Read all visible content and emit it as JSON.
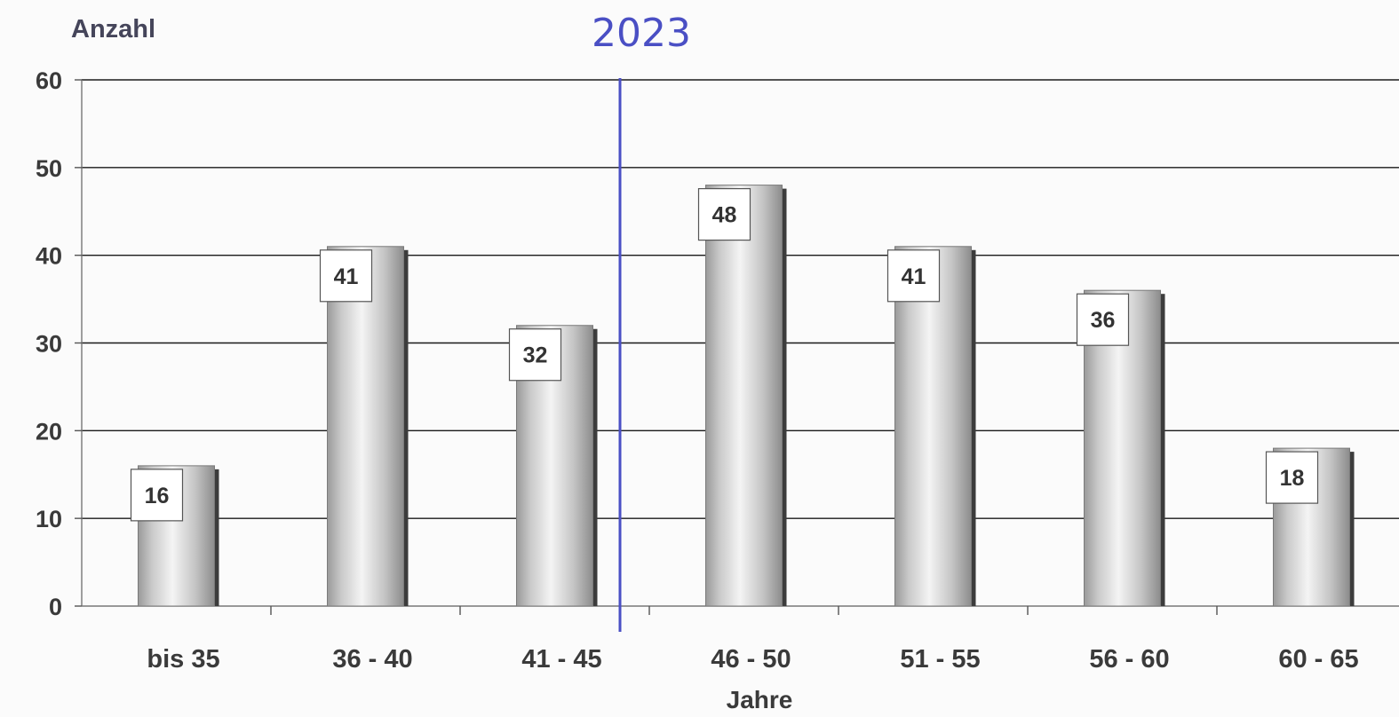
{
  "chart_data": {
    "type": "bar",
    "ylabel": "Anzahl",
    "xlabel": "Jahre",
    "categories": [
      "bis 35",
      "36 - 40",
      "41 - 45",
      "46 - 50",
      "51 - 55",
      "56 - 60",
      "60 - 65"
    ],
    "values": [
      16,
      41,
      32,
      48,
      41,
      36,
      18
    ],
    "data_labels": [
      "16",
      "41",
      "32",
      "48",
      "41",
      "36",
      "18"
    ],
    "ylim": [
      0,
      60
    ],
    "yticks": [
      0,
      10,
      20,
      30,
      40,
      50,
      60
    ],
    "ytick_labels": [
      "0",
      "10",
      "20",
      "30",
      "40",
      "50",
      "60"
    ],
    "grid": true,
    "legend": "none",
    "bar_color": "#d9d9d9",
    "gridline_color": "#1a1a1a",
    "annotation": {
      "text": "2023",
      "color": "#4a4fc4",
      "note_line_between": [
        "41 - 45",
        "46 - 50"
      ]
    }
  }
}
